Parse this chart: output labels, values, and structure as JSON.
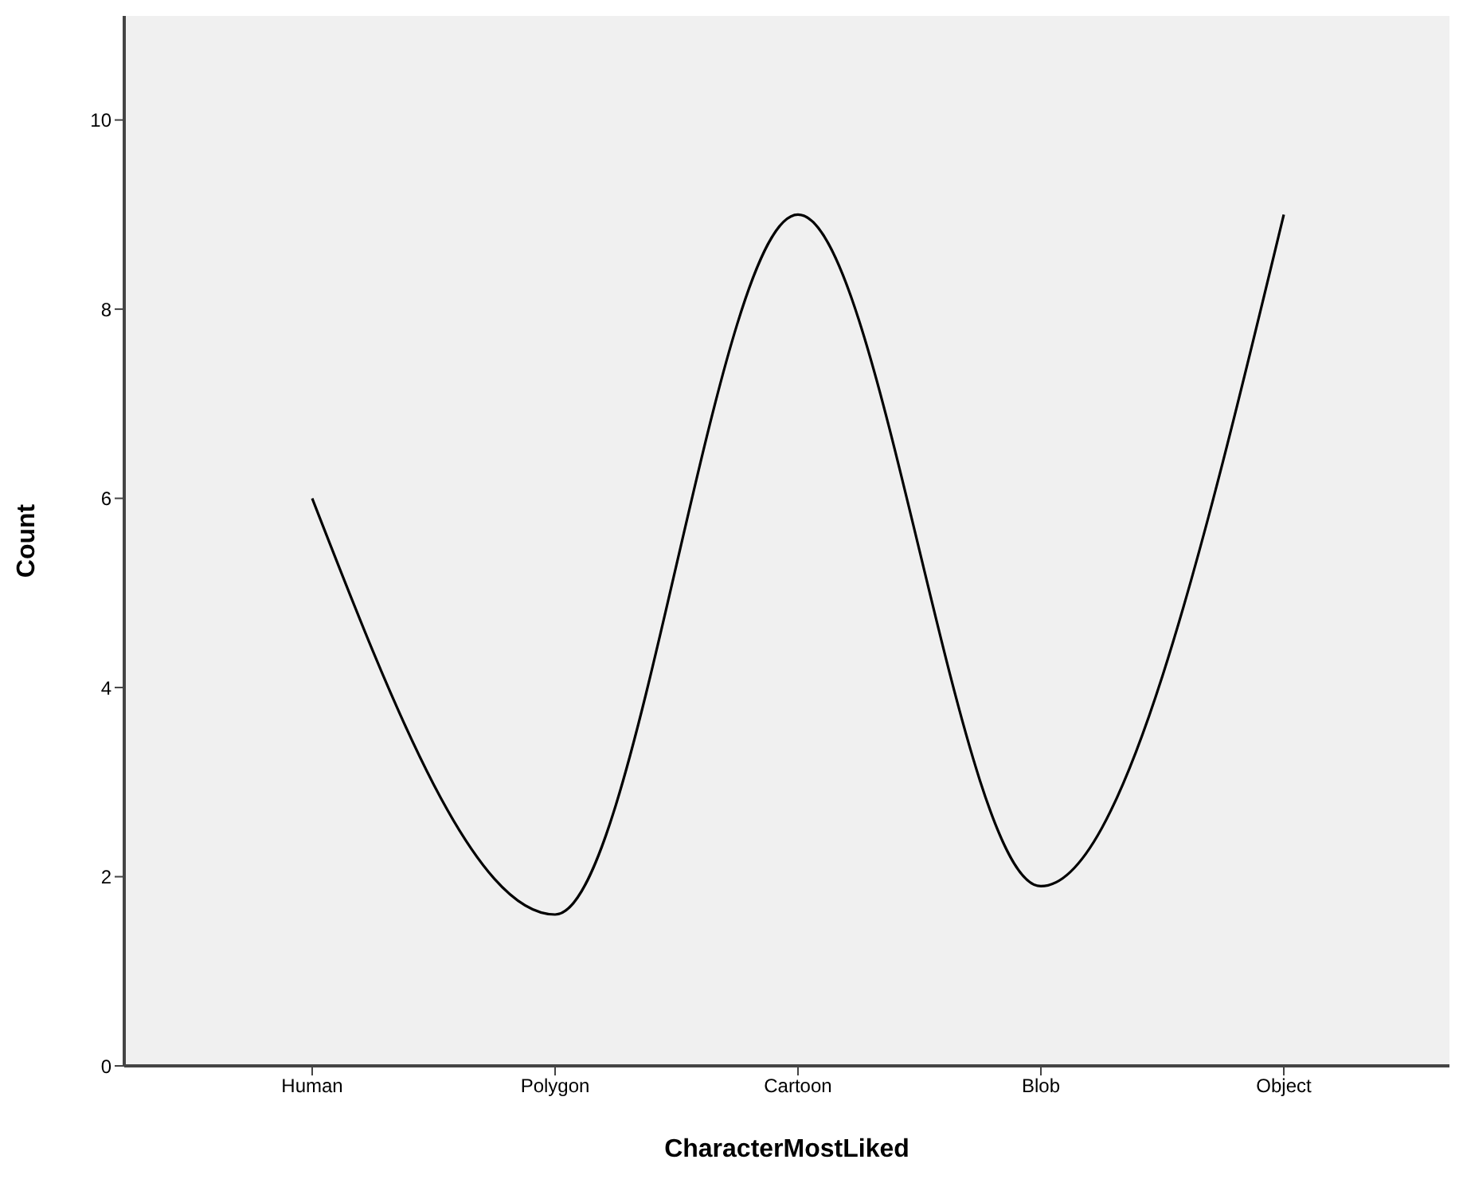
{
  "chart_data": {
    "type": "line",
    "xlabel": "CharacterMostLiked",
    "ylabel": "Count",
    "categories": [
      "Human",
      "Polygon",
      "Cartoon",
      "Blob",
      "Object"
    ],
    "series": [
      {
        "color": "#000000",
        "values": [
          6,
          1.6,
          9,
          1.9,
          9
        ]
      }
    ],
    "ylim": [
      0,
      11.1
    ],
    "yticks": [
      0,
      2,
      4,
      6,
      8,
      10
    ],
    "grid": false,
    "legend": false,
    "marker": "none",
    "line_style": "solid"
  }
}
